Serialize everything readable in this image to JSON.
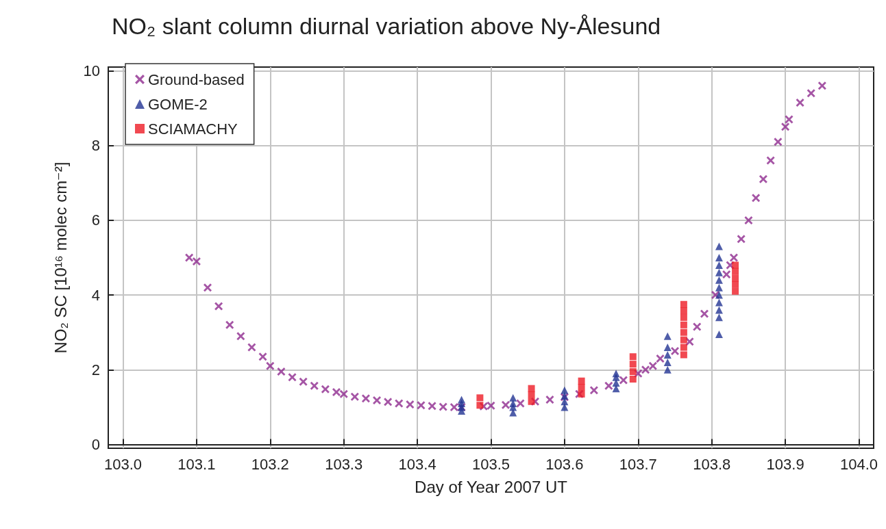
{
  "chart_data": {
    "type": "scatter",
    "title": "NO₂ slant column diurnal variation above Ny-Ålesund",
    "xlabel": "Day of Year 2007 UT",
    "ylabel": "NO₂ SC [10¹⁶ molec cm⁻²]",
    "xlim": [
      102.98,
      104.02
    ],
    "xticks": [
      {
        "value": 103,
        "label": "103.0"
      },
      103.1,
      103.2,
      103.3,
      103.4,
      103.5,
      103.6,
      103.7,
      103.8,
      103.9,
      {
        "value": 104,
        "label": "104.0"
      }
    ],
    "ylim": [
      -0.1,
      10.1
    ],
    "yticks": [
      0,
      2,
      4,
      6,
      8,
      10
    ],
    "grid": true,
    "legend": "top left",
    "series": [
      {
        "name": "Ground-based",
        "color": "#8e2a8e",
        "marker": "cross",
        "x": [
          103.09,
          103.1,
          103.115,
          103.13,
          103.145,
          103.16,
          103.175,
          103.19,
          103.2,
          103.215,
          103.23,
          103.245,
          103.26,
          103.275,
          103.29,
          103.3,
          103.315,
          103.33,
          103.345,
          103.36,
          103.375,
          103.39,
          103.405,
          103.42,
          103.435,
          103.45,
          103.46,
          103.49,
          103.5,
          103.52,
          103.54,
          103.56,
          103.58,
          103.6,
          103.62,
          103.64,
          103.66,
          103.68,
          103.7,
          103.71,
          103.72,
          103.73,
          103.75,
          103.77,
          103.78,
          103.79,
          103.805,
          103.82,
          103.825,
          103.83,
          103.84,
          103.85,
          103.86,
          103.87,
          103.88,
          103.89,
          103.9,
          103.905,
          103.92,
          103.935,
          103.95
        ],
        "values": [
          5.0,
          4.9,
          4.2,
          3.7,
          3.2,
          2.9,
          2.6,
          2.35,
          2.1,
          1.95,
          1.8,
          1.68,
          1.57,
          1.48,
          1.4,
          1.35,
          1.28,
          1.23,
          1.18,
          1.14,
          1.1,
          1.07,
          1.05,
          1.03,
          1.01,
          1.0,
          1.0,
          1.02,
          1.04,
          1.06,
          1.1,
          1.15,
          1.2,
          1.27,
          1.35,
          1.45,
          1.57,
          1.72,
          1.9,
          2.0,
          2.1,
          2.3,
          2.5,
          2.75,
          3.15,
          3.5,
          4.0,
          4.55,
          4.8,
          5.0,
          5.5,
          6.0,
          6.6,
          7.1,
          7.6,
          8.1,
          8.5,
          8.7,
          9.15,
          9.4,
          9.6
        ]
      },
      {
        "name": "GOME-2",
        "color": "#233594",
        "marker": "triangle",
        "x": [
          103.46,
          103.46,
          103.46,
          103.46,
          103.53,
          103.53,
          103.53,
          103.53,
          103.6,
          103.6,
          103.6,
          103.6,
          103.67,
          103.67,
          103.67,
          103.67,
          103.74,
          103.74,
          103.74,
          103.74,
          103.74,
          103.81,
          103.81,
          103.81,
          103.81,
          103.81,
          103.81,
          103.81,
          103.81,
          103.81,
          103.81,
          103.81
        ],
        "values": [
          0.9,
          1.0,
          1.1,
          1.2,
          0.85,
          1.0,
          1.1,
          1.25,
          1.0,
          1.15,
          1.3,
          1.45,
          1.5,
          1.65,
          1.8,
          1.9,
          2.0,
          2.2,
          2.4,
          2.6,
          2.9,
          2.95,
          3.4,
          3.6,
          3.8,
          4.0,
          4.2,
          4.4,
          4.6,
          4.8,
          5.0,
          5.3
        ]
      },
      {
        "name": "SCIAMACHY",
        "color": "#ee1c25",
        "marker": "square",
        "x": [
          103.485,
          103.485,
          103.555,
          103.555,
          103.555,
          103.623,
          103.623,
          103.623,
          103.693,
          103.693,
          103.693,
          103.693,
          103.762,
          103.762,
          103.762,
          103.762,
          103.762,
          103.762,
          103.762,
          103.762,
          103.832,
          103.832,
          103.832,
          103.832,
          103.832
        ],
        "values": [
          1.05,
          1.25,
          1.15,
          1.33,
          1.5,
          1.35,
          1.53,
          1.7,
          1.75,
          1.95,
          2.15,
          2.35,
          2.4,
          2.6,
          2.8,
          3.0,
          3.2,
          3.4,
          3.58,
          3.75,
          4.1,
          4.28,
          4.45,
          4.63,
          4.8
        ]
      }
    ]
  }
}
